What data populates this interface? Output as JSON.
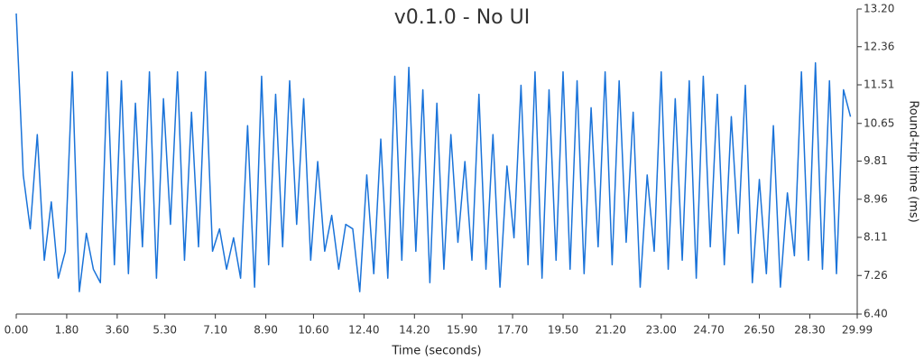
{
  "chart_data": {
    "type": "line",
    "title": "v0.1.0 - No UI",
    "x_label": "Time (seconds)",
    "y_label": "Round-trip time (ms)",
    "x": [
      0,
      0.25,
      0.5,
      0.75,
      1,
      1.25,
      1.5,
      1.75,
      2,
      2.25,
      2.5,
      2.75,
      3,
      3.25,
      3.5,
      3.75,
      4,
      4.25,
      4.5,
      4.75,
      5,
      5.25,
      5.5,
      5.75,
      6,
      6.25,
      6.5,
      6.75,
      7,
      7.25,
      7.5,
      7.75,
      8,
      8.25,
      8.5,
      8.75,
      9,
      9.25,
      9.5,
      9.75,
      10,
      10.25,
      10.5,
      10.75,
      11,
      11.25,
      11.5,
      11.75,
      12,
      12.25,
      12.5,
      12.75,
      13,
      13.25,
      13.5,
      13.75,
      14,
      14.25,
      14.5,
      14.75,
      15,
      15.25,
      15.5,
      15.75,
      16,
      16.25,
      16.5,
      16.75,
      17,
      17.25,
      17.5,
      17.75,
      18,
      18.25,
      18.5,
      18.75,
      19,
      19.25,
      19.5,
      19.75,
      20,
      20.25,
      20.5,
      20.75,
      21,
      21.25,
      21.5,
      21.75,
      22,
      22.25,
      22.5,
      22.75,
      23,
      23.25,
      23.5,
      23.75,
      24,
      24.25,
      24.5,
      24.75,
      25,
      25.25,
      25.5,
      25.75,
      26,
      26.25,
      26.5,
      26.75,
      27,
      27.25,
      27.5,
      27.75,
      28,
      28.25,
      28.5,
      28.75,
      29,
      29.25,
      29.5,
      29.75
    ],
    "series": [
      {
        "name": "Round-trip time",
        "color": "#1a73d9",
        "values": [
          13.1,
          9.5,
          8.3,
          10.4,
          7.6,
          8.9,
          7.2,
          7.8,
          11.8,
          6.9,
          8.2,
          7.4,
          7.1,
          11.8,
          7.5,
          11.6,
          7.3,
          11.1,
          7.9,
          11.8,
          7.2,
          11.2,
          8.4,
          11.8,
          7.6,
          10.9,
          7.9,
          11.8,
          7.8,
          8.3,
          7.4,
          8.1,
          7.2,
          10.6,
          7.0,
          11.7,
          7.5,
          11.3,
          7.9,
          11.6,
          8.4,
          11.2,
          7.6,
          9.8,
          7.8,
          8.6,
          7.4,
          8.4,
          8.3,
          6.9,
          9.5,
          7.3,
          10.3,
          7.2,
          11.7,
          7.6,
          11.9,
          7.8,
          11.4,
          7.1,
          11.1,
          7.4,
          10.4,
          8.0,
          9.8,
          7.6,
          11.3,
          7.4,
          10.4,
          7.0,
          9.7,
          8.1,
          11.5,
          7.5,
          11.8,
          7.2,
          11.4,
          7.6,
          11.8,
          7.4,
          11.6,
          7.3,
          11.0,
          7.9,
          11.8,
          7.5,
          11.6,
          8.0,
          10.9,
          7.0,
          9.5,
          7.8,
          11.8,
          7.4,
          11.2,
          7.6,
          11.6,
          7.2,
          11.7,
          7.9,
          11.3,
          7.5,
          10.8,
          8.2,
          11.5,
          7.1,
          9.4,
          7.3,
          10.6,
          7.0,
          9.1,
          7.7,
          11.8,
          7.6,
          12.0,
          7.4,
          11.6,
          7.3,
          11.4,
          10.8
        ]
      }
    ],
    "xlim": [
      0,
      29.99
    ],
    "xticks": [
      {
        "value": 0,
        "label": "0.00"
      },
      {
        "value": 1.8,
        "label": "1.80"
      },
      {
        "value": 3.6,
        "label": "3.60"
      },
      {
        "value": 5.3,
        "label": "5.30"
      },
      {
        "value": 7.1,
        "label": "7.10"
      },
      {
        "value": 8.9,
        "label": "8.90"
      },
      {
        "value": 10.6,
        "label": "10.60"
      },
      {
        "value": 12.4,
        "label": "12.40"
      },
      {
        "value": 14.2,
        "label": "14.20"
      },
      {
        "value": 15.9,
        "label": "15.90"
      },
      {
        "value": 17.7,
        "label": "17.70"
      },
      {
        "value": 19.5,
        "label": "19.50"
      },
      {
        "value": 21.2,
        "label": "21.20"
      },
      {
        "value": 23,
        "label": "23.00"
      },
      {
        "value": 24.7,
        "label": "24.70"
      },
      {
        "value": 26.5,
        "label": "26.50"
      },
      {
        "value": 28.3,
        "label": "28.30"
      },
      29.99
    ],
    "ylim": [
      6.4,
      13.2
    ],
    "yticks": [
      {
        "value": 6.4,
        "label": "6.40"
      },
      7.26,
      8.11,
      8.96,
      9.81,
      10.65,
      11.51,
      12.36,
      {
        "value": 13.2,
        "label": "13.20"
      }
    ]
  }
}
